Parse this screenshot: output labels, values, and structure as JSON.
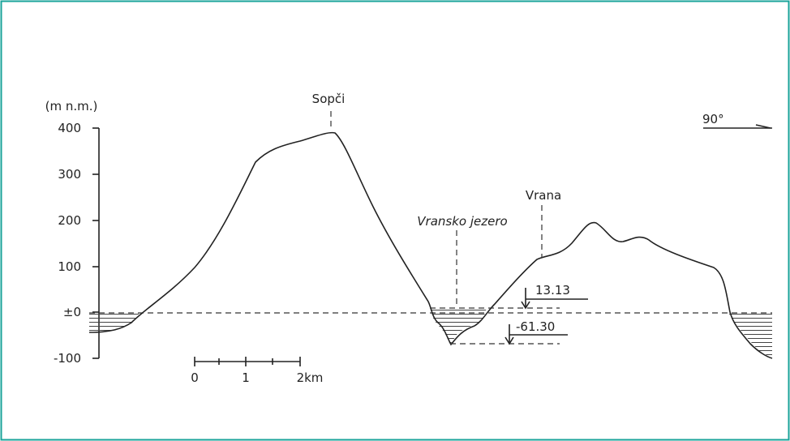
{
  "axis": {
    "unit": "(m n.m.)",
    "ticks": [
      "400",
      "300",
      "200",
      "100",
      "±0",
      "-100"
    ]
  },
  "labels": {
    "peak": "Sopči",
    "village": "Vrana",
    "lake": "Vransko jezero",
    "direction": "90°"
  },
  "levels": [
    "13.13",
    "-61.30"
  ],
  "scale": [
    "0",
    "1",
    "2km"
  ]
}
